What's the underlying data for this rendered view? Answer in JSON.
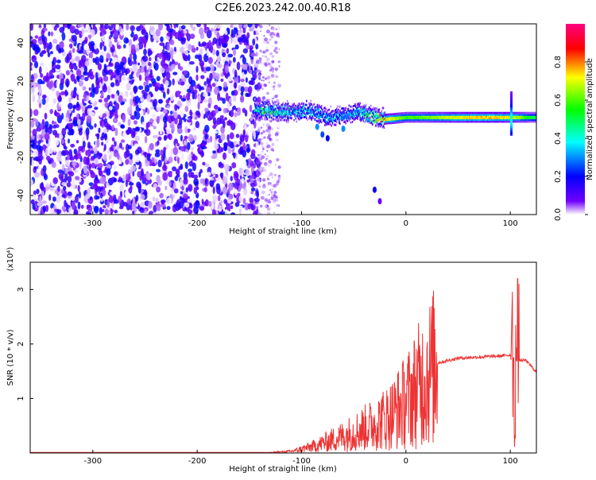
{
  "figure": {
    "title": "C2E6.2023.242.00.40.R18"
  },
  "chart_data": [
    {
      "type": "heatmap",
      "xlabel": "Height of straight line (km)",
      "ylabel": "Frequency (Hz)",
      "xlim": [
        -360,
        125
      ],
      "ylim": [
        -50,
        50
      ],
      "xticks": [
        -300,
        -200,
        -100,
        0,
        100
      ],
      "yticks": [
        -40,
        -20,
        0,
        20,
        40
      ],
      "colorbar": {
        "label": "Normalized spectral amplitude",
        "range": [
          0,
          1
        ],
        "ticks": [
          0.0,
          0.2,
          0.4,
          0.6,
          0.8
        ],
        "colors": [
          "#ffffff",
          "#7000ff",
          "#0000ff",
          "#00ffff",
          "#00ff00",
          "#ffff00",
          "#ff0000",
          "#ff0080"
        ]
      },
      "noise_region_x": [
        -360,
        -140
      ],
      "ridge": [
        {
          "x": -145,
          "y": 5,
          "amp": 0.45
        },
        {
          "x": -135,
          "y": 5,
          "amp": 0.55
        },
        {
          "x": -120,
          "y": 4,
          "amp": 0.45
        },
        {
          "x": -105,
          "y": 4,
          "amp": 0.4
        },
        {
          "x": -95,
          "y": 5,
          "amp": 0.38
        },
        {
          "x": -85,
          "y": 3,
          "amp": 0.35
        },
        {
          "x": -75,
          "y": 1,
          "amp": 0.35
        },
        {
          "x": -60,
          "y": 2,
          "amp": 0.38
        },
        {
          "x": -45,
          "y": 4,
          "amp": 0.4
        },
        {
          "x": -35,
          "y": 2,
          "amp": 0.55
        },
        {
          "x": -20,
          "y": 0,
          "amp": 0.85
        },
        {
          "x": 0,
          "y": 1,
          "amp": 0.65
        },
        {
          "x": 20,
          "y": 1,
          "amp": 0.7
        },
        {
          "x": 50,
          "y": 1,
          "amp": 0.8
        },
        {
          "x": 80,
          "y": 1,
          "amp": 0.85
        },
        {
          "x": 100,
          "y": 1,
          "amp": 0.8
        },
        {
          "x": 125,
          "y": 1,
          "amp": 0.55
        }
      ]
    },
    {
      "type": "line",
      "xlabel": "Height of straight line (km)",
      "ylabel": "SNR (10 * v/v)",
      "scale_label": "(x10⁴)",
      "xlim": [
        -360,
        125
      ],
      "ylim": [
        0,
        3.5
      ],
      "xticks": [
        -300,
        -200,
        -100,
        0,
        100
      ],
      "yticks": [
        1,
        2,
        3
      ],
      "series": [
        {
          "color": "#ee3333",
          "envelope": [
            {
              "x": -360,
              "v": 0.01
            },
            {
              "x": -130,
              "v": 0.01
            },
            {
              "x": -110,
              "v": 0.04
            },
            {
              "x": -90,
              "v": 0.15
            },
            {
              "x": -70,
              "v": 0.3
            },
            {
              "x": -50,
              "v": 0.45
            },
            {
              "x": -30,
              "v": 0.6
            },
            {
              "x": -15,
              "v": 0.75
            },
            {
              "x": 0,
              "v": 1.0
            },
            {
              "x": 15,
              "v": 1.35
            },
            {
              "x": 30,
              "v": 1.65
            },
            {
              "x": 50,
              "v": 1.74
            },
            {
              "x": 70,
              "v": 1.76
            },
            {
              "x": 90,
              "v": 1.78
            },
            {
              "x": 100,
              "v": 1.8
            },
            {
              "x": 105,
              "v": 1.7
            },
            {
              "x": 115,
              "v": 1.7
            },
            {
              "x": 125,
              "v": 1.48
            }
          ],
          "spikes": [
            {
              "x": 102,
              "v": 3.3
            },
            {
              "x": 104,
              "v": 0.1
            },
            {
              "x": 107,
              "v": 3.2
            }
          ]
        }
      ]
    }
  ]
}
